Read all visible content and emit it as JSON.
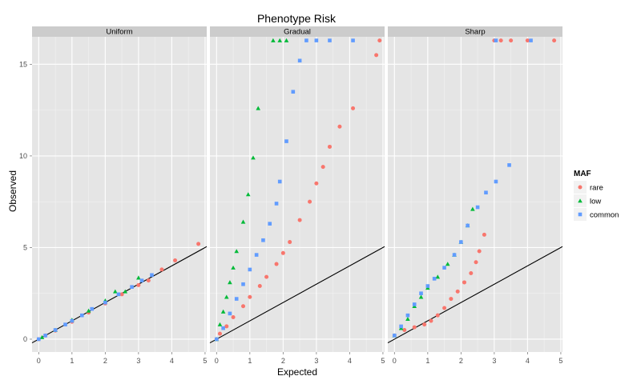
{
  "chart_data": {
    "type": "scatter",
    "title": "Phenotype Risk",
    "xlabel": "Expected",
    "ylabel": "Observed",
    "xlim": [
      -0.2,
      5.05
    ],
    "ylim": [
      -0.7,
      16.5
    ],
    "x_ticks": [
      0,
      1,
      2,
      3,
      4,
      5
    ],
    "y_ticks": [
      0,
      5,
      10,
      15
    ],
    "grid": true,
    "reference_line": "y = x",
    "legend": {
      "title": "MAF",
      "position": "right",
      "entries": [
        {
          "name": "rare",
          "color": "#F8766D",
          "shape": "circle"
        },
        {
          "name": "low",
          "color": "#00BA38",
          "shape": "triangle"
        },
        {
          "name": "common",
          "color": "#619CFF",
          "shape": "square"
        }
      ]
    },
    "panels": [
      {
        "label": "Uniform",
        "series": [
          {
            "name": "rare",
            "points": [
              [
                0,
                0
              ],
              [
                0.2,
                0.2
              ],
              [
                0.5,
                0.47
              ],
              [
                1.0,
                0.95
              ],
              [
                1.5,
                1.45
              ],
              [
                2.0,
                1.95
              ],
              [
                2.5,
                2.45
              ],
              [
                3.0,
                2.95
              ],
              [
                3.3,
                3.2
              ],
              [
                3.7,
                3.8
              ],
              [
                4.1,
                4.3
              ],
              [
                4.8,
                5.2
              ]
            ]
          },
          {
            "name": "low",
            "points": [
              [
                0.1,
                0.1
              ],
              [
                0.5,
                0.5
              ],
              [
                1.0,
                1.05
              ],
              [
                1.5,
                1.55
              ],
              [
                2.0,
                2.1
              ],
              [
                2.3,
                2.6
              ],
              [
                2.6,
                2.6
              ],
              [
                3.0,
                3.35
              ]
            ]
          },
          {
            "name": "common",
            "points": [
              [
                0,
                0
              ],
              [
                0.2,
                0.2
              ],
              [
                0.5,
                0.5
              ],
              [
                0.8,
                0.8
              ],
              [
                1.0,
                1.0
              ],
              [
                1.3,
                1.3
              ],
              [
                1.6,
                1.65
              ],
              [
                2.0,
                2.0
              ],
              [
                2.4,
                2.45
              ],
              [
                2.8,
                2.85
              ],
              [
                3.1,
                3.2
              ],
              [
                3.4,
                3.5
              ]
            ]
          }
        ]
      },
      {
        "label": "Gradual",
        "series": [
          {
            "name": "rare",
            "points": [
              [
                0,
                0
              ],
              [
                0.1,
                0.3
              ],
              [
                0.3,
                0.7
              ],
              [
                0.5,
                1.2
              ],
              [
                0.8,
                1.8
              ],
              [
                1.0,
                2.3
              ],
              [
                1.3,
                2.9
              ],
              [
                1.5,
                3.4
              ],
              [
                1.8,
                4.1
              ],
              [
                2.0,
                4.7
              ],
              [
                2.2,
                5.3
              ],
              [
                2.5,
                6.5
              ],
              [
                2.8,
                7.5
              ],
              [
                3.0,
                8.5
              ],
              [
                3.2,
                9.4
              ],
              [
                3.4,
                10.5
              ],
              [
                3.7,
                11.6
              ],
              [
                4.1,
                12.6
              ],
              [
                4.8,
                15.5
              ],
              [
                4.9,
                16.3
              ]
            ]
          },
          {
            "name": "low",
            "points": [
              [
                0,
                0
              ],
              [
                0.1,
                0.8
              ],
              [
                0.2,
                1.5
              ],
              [
                0.3,
                2.3
              ],
              [
                0.4,
                3.1
              ],
              [
                0.5,
                3.9
              ],
              [
                0.6,
                4.8
              ],
              [
                0.8,
                6.4
              ],
              [
                0.95,
                7.9
              ],
              [
                1.1,
                9.9
              ],
              [
                1.25,
                12.6
              ],
              [
                1.7,
                16.3
              ],
              [
                1.9,
                16.3
              ],
              [
                2.1,
                16.3
              ]
            ]
          },
          {
            "name": "common",
            "points": [
              [
                0,
                0
              ],
              [
                0.2,
                0.6
              ],
              [
                0.4,
                1.4
              ],
              [
                0.6,
                2.2
              ],
              [
                0.8,
                3.0
              ],
              [
                1.0,
                3.8
              ],
              [
                1.2,
                4.6
              ],
              [
                1.4,
                5.4
              ],
              [
                1.6,
                6.3
              ],
              [
                1.8,
                7.4
              ],
              [
                1.9,
                8.6
              ],
              [
                2.1,
                10.8
              ],
              [
                2.3,
                13.5
              ],
              [
                2.5,
                15.2
              ],
              [
                2.7,
                16.3
              ],
              [
                3.0,
                16.3
              ],
              [
                3.4,
                16.3
              ],
              [
                4.1,
                16.3
              ]
            ]
          }
        ]
      },
      {
        "label": "Sharp",
        "series": [
          {
            "name": "rare",
            "points": [
              [
                0,
                0.2
              ],
              [
                0.3,
                0.5
              ],
              [
                0.6,
                0.65
              ],
              [
                0.9,
                0.8
              ],
              [
                1.1,
                1.0
              ],
              [
                1.3,
                1.3
              ],
              [
                1.5,
                1.7
              ],
              [
                1.7,
                2.2
              ],
              [
                1.9,
                2.6
              ],
              [
                2.1,
                3.1
              ],
              [
                2.3,
                3.6
              ],
              [
                2.45,
                4.2
              ],
              [
                2.55,
                4.8
              ],
              [
                2.7,
                5.7
              ],
              [
                3.0,
                16.3
              ],
              [
                3.2,
                16.3
              ],
              [
                3.5,
                16.3
              ],
              [
                4.0,
                16.3
              ],
              [
                4.8,
                16.3
              ]
            ]
          },
          {
            "name": "low",
            "points": [
              [
                0,
                0.2
              ],
              [
                0.2,
                0.6
              ],
              [
                0.4,
                1.1
              ],
              [
                0.6,
                1.8
              ],
              [
                0.8,
                2.3
              ],
              [
                1.0,
                2.8
              ],
              [
                1.3,
                3.4
              ],
              [
                1.6,
                4.1
              ],
              [
                1.8,
                4.6
              ],
              [
                2.0,
                5.3
              ],
              [
                2.2,
                6.2
              ],
              [
                2.35,
                7.1
              ]
            ]
          },
          {
            "name": "common",
            "points": [
              [
                0,
                0.2
              ],
              [
                0.2,
                0.7
              ],
              [
                0.4,
                1.3
              ],
              [
                0.6,
                1.9
              ],
              [
                0.8,
                2.5
              ],
              [
                1.0,
                2.9
              ],
              [
                1.2,
                3.3
              ],
              [
                1.5,
                3.9
              ],
              [
                1.8,
                4.6
              ],
              [
                2.0,
                5.3
              ],
              [
                2.2,
                6.2
              ],
              [
                2.5,
                7.2
              ],
              [
                2.75,
                8.0
              ],
              [
                3.05,
                8.6
              ],
              [
                3.45,
                9.5
              ],
              [
                3.05,
                16.3
              ],
              [
                4.1,
                16.3
              ]
            ]
          }
        ]
      }
    ]
  }
}
